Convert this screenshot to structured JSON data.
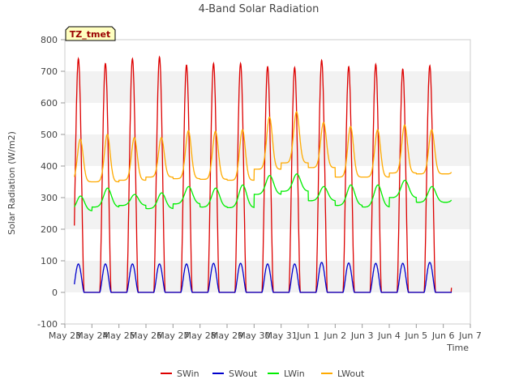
{
  "chart_data": {
    "type": "line",
    "title": "4-Band Solar Radiation",
    "xlabel": "Time",
    "ylabel": "Solar Radiation (W/m2)",
    "ylim": [
      -100,
      800
    ],
    "xlim": [
      0,
      15
    ],
    "yticks": [
      -100,
      0,
      100,
      200,
      300,
      400,
      500,
      600,
      700,
      800
    ],
    "xtick_labels": [
      "May 23",
      "May 24",
      "May 25",
      "May 26",
      "May 27",
      "May 28",
      "May 29",
      "May 30",
      "May 31",
      "Jun 1",
      "Jun 2",
      "Jun 3",
      "Jun 4",
      "Jun 5",
      "Jun 6",
      "Jun 7"
    ],
    "grid": "horizontal bands",
    "annotation": "TZ_tmet",
    "legend_position": "bottom",
    "day_start": 0.35,
    "day_end": 14.3,
    "series": [
      {
        "name": "SWin",
        "color": "#dd0000",
        "daily_peaks": [
          740,
          725,
          740,
          745,
          720,
          725,
          725,
          715,
          712,
          735,
          715,
          722,
          707,
          718
        ]
      },
      {
        "name": "SWout",
        "color": "#0000cc",
        "daily_peaks": [
          90,
          90,
          90,
          90,
          90,
          92,
          92,
          90,
          90,
          95,
          93,
          92,
          92,
          95
        ]
      },
      {
        "name": "LWin",
        "color": "#00ee00",
        "daily_max": [
          305,
          330,
          310,
          315,
          335,
          330,
          340,
          370,
          375,
          335,
          340,
          340,
          355,
          335
        ],
        "daily_min": [
          258,
          270,
          275,
          265,
          280,
          270,
          268,
          310,
          320,
          290,
          275,
          270,
          300,
          285
        ]
      },
      {
        "name": "LWout",
        "color": "#ffaa00",
        "daily_max": [
          485,
          500,
          490,
          490,
          512,
          510,
          515,
          555,
          572,
          538,
          525,
          515,
          530,
          515
        ],
        "daily_min": [
          350,
          350,
          355,
          365,
          360,
          358,
          355,
          390,
          410,
          395,
          365,
          365,
          378,
          375
        ]
      }
    ]
  }
}
